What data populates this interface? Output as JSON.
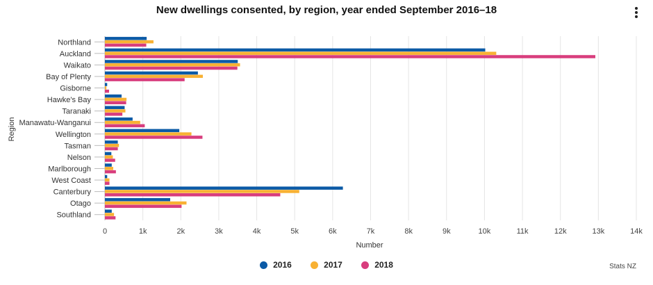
{
  "header": {
    "title": "New dwellings consented, by region, year ended September 2016–18",
    "menu_icon": "kebab-menu-icon"
  },
  "credit": "Stats NZ",
  "colors": {
    "2016": "#0b5aa6",
    "2017": "#f8b133",
    "2018": "#d83d7d"
  },
  "chart_data": {
    "type": "bar",
    "orientation": "horizontal",
    "title": "New dwellings consented, by region, year ended September 2016–18",
    "xlabel": "Number",
    "ylabel": "Region",
    "xlim": [
      0,
      14000
    ],
    "xticks": [
      "0",
      "1k",
      "2k",
      "3k",
      "4k",
      "5k",
      "6k",
      "7k",
      "8k",
      "9k",
      "10k",
      "11k",
      "12k",
      "13k",
      "14k"
    ],
    "categories": [
      "Northland",
      "Auckland",
      "Waikato",
      "Bay of Plenty",
      "Gisborne",
      "Hawke's Bay",
      "Taranaki",
      "Manawatu-Wanganui",
      "Wellington",
      "Tasman",
      "Nelson",
      "Marlborough",
      "West Coast",
      "Canterbury",
      "Otago",
      "Southland"
    ],
    "series": [
      {
        "name": "2016",
        "values": [
          1100,
          10020,
          3500,
          2450,
          60,
          440,
          520,
          730,
          1960,
          340,
          170,
          180,
          60,
          6270,
          1720,
          180
        ]
      },
      {
        "name": "2017",
        "values": [
          1280,
          10310,
          3560,
          2580,
          40,
          570,
          540,
          930,
          2280,
          370,
          210,
          220,
          120,
          5120,
          2150,
          240
        ]
      },
      {
        "name": "2018",
        "values": [
          1090,
          12920,
          3490,
          2100,
          110,
          560,
          460,
          1050,
          2570,
          340,
          270,
          290,
          120,
          4620,
          2020,
          280
        ]
      }
    ],
    "legend_position": "bottom-center"
  }
}
